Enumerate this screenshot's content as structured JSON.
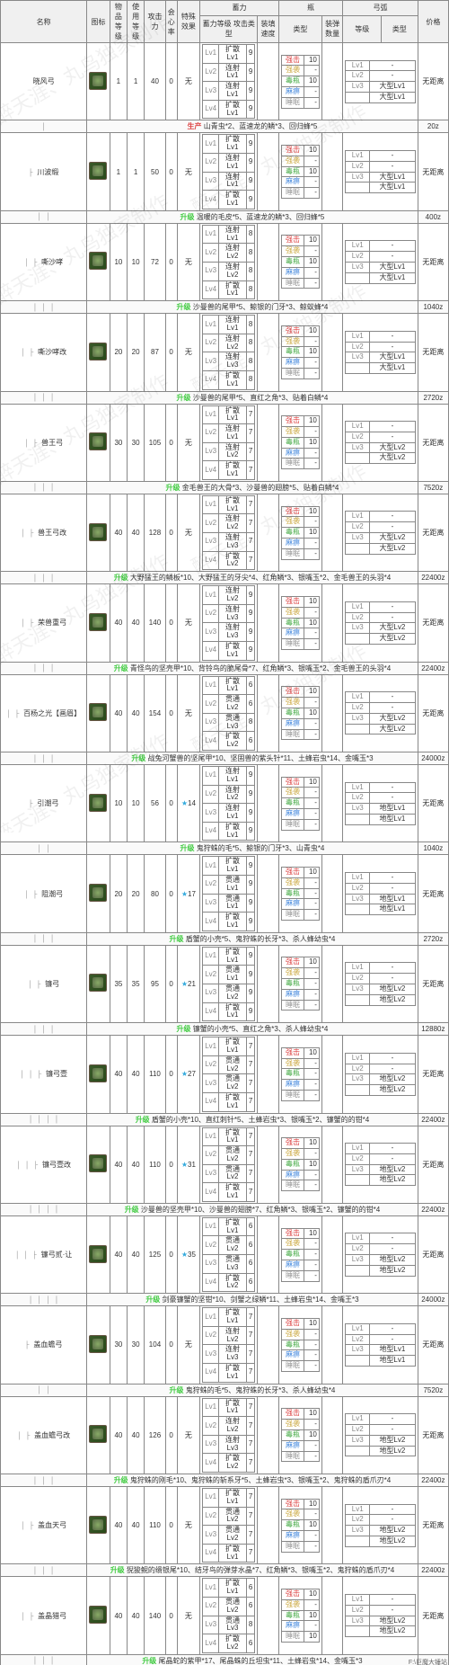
{
  "watermark_text": "醉天涯、丸鸟独家制作",
  "footer_text": "F:\\巨魔大锤站",
  "headers": {
    "name": "名称",
    "icon": "图标",
    "rare": "物品\n等级",
    "use": "使用\n等级",
    "atk": "攻击\n力",
    "aff": "会心\n率",
    "sp": "特殊\n效果",
    "power_top": "蓄力",
    "bottle_top": "瓶",
    "arc_top": "弓弧",
    "power_lv": "蓄力等级",
    "power_type": "攻击类型",
    "load": "装填速度",
    "bot_type": "类型",
    "bot_num": "装弹数量",
    "arc_lv": "等级",
    "coat": "类型",
    "price": "价格"
  },
  "rows": [
    {
      "depth": 0,
      "name": "晓风弓",
      "rare": 1,
      "use": 1,
      "atk": 40,
      "aff": 0,
      "sp": "无",
      "pow": [
        [
          "Lv1",
          "扩散Lv1",
          "9"
        ],
        [
          "Lv2",
          "连射Lv1",
          "9"
        ],
        [
          "Lv3",
          "连射Lv1",
          "9"
        ],
        [
          "Lv4",
          "扩散Lv1",
          "9"
        ]
      ],
      "bot": [
        [
          "强击",
          "10"
        ],
        [
          "强袭",
          "-"
        ],
        [
          "毒瓶",
          "10"
        ],
        [
          "麻痹",
          "-"
        ],
        [
          "睡眠",
          "-"
        ]
      ],
      "arc": [
        [
          "Lv1",
          "-"
        ],
        [
          "Lv2",
          "-"
        ],
        [
          "Lv3",
          "大型Lv1"
        ],
        [
          "",
          "大型Lv1"
        ]
      ],
      "price": "无距离",
      "mat_tag": "生产",
      "mat": "山青虫*2、蓝速龙的鳞*3、回归蜂*5",
      "mat_price": "20z"
    },
    {
      "depth": 1,
      "name": "川波缎",
      "rare": 1,
      "use": 1,
      "atk": 50,
      "aff": 0,
      "sp": "无",
      "pow": [
        [
          "Lv1",
          "扩散Lv1",
          "9"
        ],
        [
          "Lv2",
          "连射Lv1",
          "9"
        ],
        [
          "Lv3",
          "连射Lv1",
          "9"
        ],
        [
          "Lv4",
          "扩散Lv1",
          "9"
        ]
      ],
      "bot": [
        [
          "强击",
          "10"
        ],
        [
          "强袭",
          "-"
        ],
        [
          "毒瓶",
          "10"
        ],
        [
          "麻痹",
          "-"
        ],
        [
          "睡眠",
          "-"
        ]
      ],
      "arc": [
        [
          "Lv1",
          "-"
        ],
        [
          "Lv2",
          "-"
        ],
        [
          "Lv3",
          "大型Lv1"
        ],
        [
          "",
          "大型Lv1"
        ]
      ],
      "price": "无距离",
      "mat_tag": "升级",
      "mat": "温暖的毛皮*5、蓝速龙的鳞*3、回归蜂*5",
      "mat_price": "400z"
    },
    {
      "depth": 2,
      "name": "嘶沙哮",
      "rare": 10,
      "use": 10,
      "atk": 72,
      "aff": 0,
      "sp": "无",
      "pow": [
        [
          "Lv1",
          "连射Lv1",
          "8"
        ],
        [
          "Lv2",
          "连射Lv2",
          "8"
        ],
        [
          "Lv3",
          "连射Lv2",
          "8"
        ],
        [
          "Lv4",
          "扩散Lv1",
          "8"
        ]
      ],
      "bot": [
        [
          "强击",
          "10"
        ],
        [
          "强袭",
          "-"
        ],
        [
          "毒瓶",
          "10"
        ],
        [
          "麻痹",
          "-"
        ],
        [
          "睡眠",
          "-"
        ]
      ],
      "arc": [
        [
          "Lv1",
          "-"
        ],
        [
          "Lv2",
          "-"
        ],
        [
          "Lv3",
          "大型Lv1"
        ],
        [
          "",
          "大型Lv1"
        ]
      ],
      "price": "无距离",
      "mat_tag": "升级",
      "mat": "沙曼兽的尾甲*5、鲸银的门牙*3、鲸蚁蜂*4",
      "mat_price": "1040z"
    },
    {
      "depth": 2,
      "name": "嘶沙哮改",
      "rare": 20,
      "use": 20,
      "atk": 87,
      "aff": 0,
      "sp": "无",
      "pow": [
        [
          "Lv1",
          "连射Lv1",
          "8"
        ],
        [
          "Lv2",
          "连射Lv2",
          "8"
        ],
        [
          "Lv3",
          "连射Lv3",
          "8"
        ],
        [
          "Lv4",
          "扩散Lv1",
          "8"
        ]
      ],
      "bot": [
        [
          "强击",
          "10"
        ],
        [
          "强袭",
          "-"
        ],
        [
          "毒瓶",
          "10"
        ],
        [
          "麻痹",
          "-"
        ],
        [
          "睡眠",
          "-"
        ]
      ],
      "arc": [
        [
          "Lv1",
          "-"
        ],
        [
          "Lv2",
          "-"
        ],
        [
          "Lv3",
          "大型Lv1"
        ],
        [
          "",
          "大型Lv1"
        ]
      ],
      "price": "无距离",
      "mat_tag": "升级",
      "mat": "沙曼兽的尾甲*5、直红之角*3、贴着白鳞*4",
      "mat_price": "2720z"
    },
    {
      "depth": 2,
      "name": "兽王弓",
      "rare": 30,
      "use": 30,
      "atk": 105,
      "aff": 0,
      "sp": "无",
      "pow": [
        [
          "Lv1",
          "扩散Lv1",
          "7"
        ],
        [
          "Lv2",
          "连射Lv1",
          "7"
        ],
        [
          "Lv3",
          "连射Lv2",
          "7"
        ],
        [
          "Lv4",
          "扩散Lv1",
          "7"
        ]
      ],
      "bot": [
        [
          "强击",
          "10"
        ],
        [
          "强袭",
          "-"
        ],
        [
          "毒瓶",
          "10"
        ],
        [
          "麻痹",
          "-"
        ],
        [
          "睡眠",
          "-"
        ]
      ],
      "arc": [
        [
          "Lv1",
          "-"
        ],
        [
          "Lv2",
          "-"
        ],
        [
          "Lv3",
          "大型Lv2"
        ],
        [
          "",
          "大型Lv2"
        ]
      ],
      "price": "无距离",
      "mat_tag": "升级",
      "mat": "金毛兽王的大骨*3、沙曼兽的翅膀*5、贴着白鳞*4",
      "mat_price": "7520z"
    },
    {
      "depth": 2,
      "name": "兽王弓改",
      "rare": 40,
      "use": 40,
      "atk": 128,
      "aff": 0,
      "sp": "无",
      "pow": [
        [
          "Lv1",
          "扩散Lv1",
          "7"
        ],
        [
          "Lv2",
          "连射Lv2",
          "7"
        ],
        [
          "Lv3",
          "连射Lv3",
          "7"
        ],
        [
          "Lv4",
          "扩散Lv2",
          "7"
        ]
      ],
      "bot": [
        [
          "强击",
          "10"
        ],
        [
          "强袭",
          "-"
        ],
        [
          "毒瓶",
          "10"
        ],
        [
          "麻痹",
          "-"
        ],
        [
          "睡眠",
          "-"
        ]
      ],
      "arc": [
        [
          "Lv1",
          "-"
        ],
        [
          "Lv2",
          "-"
        ],
        [
          "Lv3",
          "大型Lv2"
        ],
        [
          "",
          "大型Lv2"
        ]
      ],
      "price": "无距离",
      "mat_tag": "升级",
      "mat": "大野猛王的鳞板*10、大野猛王的牙尖*4、红角鳞*3、银嘴玉*2、金毛兽王的头羽*4",
      "mat_price": "22400z"
    },
    {
      "depth": 2,
      "name": "荣兽重弓",
      "rare": 40,
      "use": 40,
      "atk": 140,
      "aff": 0,
      "sp": "无",
      "pow": [
        [
          "Lv1",
          "连射Lv2",
          "9"
        ],
        [
          "Lv2",
          "连射Lv3",
          "9"
        ],
        [
          "Lv3",
          "连射Lv3",
          "9"
        ],
        [
          "Lv4",
          "扩散Lv1",
          "9"
        ]
      ],
      "bot": [
        [
          "强击",
          "10"
        ],
        [
          "强袭",
          "-"
        ],
        [
          "毒瓶",
          "10"
        ],
        [
          "麻痹",
          "-"
        ],
        [
          "睡眠",
          "-"
        ]
      ],
      "arc": [
        [
          "Lv1",
          "-"
        ],
        [
          "Lv2",
          "-"
        ],
        [
          "Lv3",
          "大型Lv2"
        ],
        [
          "",
          "大型Lv2"
        ]
      ],
      "price": "无距离",
      "mat_tag": "升级",
      "mat": "青怪鸟的坚壳甲*10、背铃鸟的脆尾骨*7、红角鳞*3、银嘴玉*2、金毛兽王的头羽*4",
      "mat_price": "22400z"
    },
    {
      "depth": 2,
      "name": "百杨之光【画眉】",
      "rare": 40,
      "use": 40,
      "atk": 154,
      "aff": 0,
      "sp": "无",
      "pow": [
        [
          "Lv1",
          "扩散Lv1",
          "6"
        ],
        [
          "Lv2",
          "贯通Lv2",
          "6"
        ],
        [
          "Lv3",
          "贯通Lv3",
          "8"
        ],
        [
          "Lv4",
          "扩散Lv2",
          "6"
        ]
      ],
      "bot": [
        [
          "强击",
          "10"
        ],
        [
          "强袭",
          "-"
        ],
        [
          "毒瓶",
          "10"
        ],
        [
          "麻痹",
          "-"
        ],
        [
          "睡眠",
          "-"
        ]
      ],
      "arc": [
        [
          "Lv1",
          "-"
        ],
        [
          "Lv2",
          "-"
        ],
        [
          "Lv3",
          "大型Lv2"
        ],
        [
          "",
          "大型Lv2"
        ]
      ],
      "price": "无距离",
      "mat_tag": "升级",
      "mat": "战兔河蟹兽的坚尾甲*10、坚固兽的紫头针*11、土蜂岩虫*14、金嘴玉*3",
      "mat_price": "24000z"
    },
    {
      "depth": 1,
      "name": "引潮弓",
      "rare": 10,
      "use": 10,
      "atk": 56,
      "aff": 0,
      "sp": "★14",
      "pow": [
        [
          "Lv1",
          "连射Lv1",
          "9"
        ],
        [
          "Lv2",
          "连射Lv2",
          "9"
        ],
        [
          "Lv3",
          "连射Lv1",
          "9"
        ],
        [
          "Lv4",
          "扩散Lv1",
          "9"
        ]
      ],
      "bot": [
        [
          "强击",
          "10"
        ],
        [
          "强袭",
          "-"
        ],
        [
          "毒瓶",
          "-"
        ],
        [
          "麻痹",
          "-"
        ],
        [
          "睡眠",
          "-"
        ]
      ],
      "arc": [
        [
          "Lv1",
          "-"
        ],
        [
          "Lv2",
          "-"
        ],
        [
          "Lv3",
          "地型Lv1"
        ],
        [
          "",
          "地型Lv1"
        ]
      ],
      "price": "无距离",
      "mat_tag": "升级",
      "mat": "鬼狩蛛的毛*5、鲸银的门牙*3、山青虫*4",
      "mat_price": "1040z"
    },
    {
      "depth": 2,
      "name": "阻潮弓",
      "rare": 20,
      "use": 20,
      "atk": 80,
      "aff": 0,
      "sp": "★17",
      "pow": [
        [
          "Lv1",
          "扩散Lv1",
          "9"
        ],
        [
          "Lv2",
          "贯通Lv1",
          "9"
        ],
        [
          "Lv3",
          "贯通Lv1",
          "9"
        ],
        [
          "Lv4",
          "扩散Lv1",
          "9"
        ]
      ],
      "bot": [
        [
          "强击",
          "10"
        ],
        [
          "强袭",
          "-"
        ],
        [
          "毒瓶",
          "-"
        ],
        [
          "麻痹",
          "-"
        ],
        [
          "睡眠",
          "-"
        ]
      ],
      "arc": [
        [
          "Lv1",
          "-"
        ],
        [
          "Lv2",
          "-"
        ],
        [
          "Lv3",
          "地型Lv1"
        ],
        [
          "",
          "地型Lv1"
        ]
      ],
      "price": "无距离",
      "mat_tag": "升级",
      "mat": "盾蟹的小壳*5、鬼狩蛛的长牙*3、杀人蜂幼虫*4",
      "mat_price": "2720z"
    },
    {
      "depth": 2,
      "name": "镰弓",
      "rare": 35,
      "use": 35,
      "atk": 95,
      "aff": 0,
      "sp": "★21",
      "pow": [
        [
          "Lv1",
          "扩散Lv1",
          "9"
        ],
        [
          "Lv2",
          "贯通Lv1",
          "9"
        ],
        [
          "Lv3",
          "贯通Lv2",
          "9"
        ],
        [
          "Lv4",
          "扩散Lv1",
          "9"
        ]
      ],
      "bot": [
        [
          "强击",
          "10"
        ],
        [
          "强袭",
          "-"
        ],
        [
          "毒瓶",
          "-"
        ],
        [
          "麻痹",
          "-"
        ],
        [
          "睡眠",
          "-"
        ]
      ],
      "arc": [
        [
          "Lv1",
          "-"
        ],
        [
          "Lv2",
          "-"
        ],
        [
          "Lv3",
          "地型Lv2"
        ],
        [
          "",
          "地型Lv2"
        ]
      ],
      "price": "无距离",
      "mat_tag": "升级",
      "mat": "镰蟹的小壳*5、直红之角*3、杀人蜂幼虫*4",
      "mat_price": "12880z"
    },
    {
      "depth": 3,
      "name": "镰弓壹",
      "rare": 40,
      "use": 40,
      "atk": 110,
      "aff": 0,
      "sp": "★27",
      "pow": [
        [
          "Lv1",
          "扩散Lv1",
          "7"
        ],
        [
          "Lv2",
          "贯通Lv2",
          "7"
        ],
        [
          "Lv3",
          "贯通Lv2",
          "7"
        ],
        [
          "Lv4",
          "扩散Lv1",
          "7"
        ]
      ],
      "bot": [
        [
          "强击",
          "10"
        ],
        [
          "强袭",
          "-"
        ],
        [
          "毒瓶",
          "-"
        ],
        [
          "麻痹",
          "-"
        ],
        [
          "睡眠",
          "-"
        ]
      ],
      "arc": [
        [
          "Lv1",
          "-"
        ],
        [
          "Lv2",
          "-"
        ],
        [
          "Lv3",
          "地型Lv2"
        ],
        [
          "",
          "地型Lv2"
        ]
      ],
      "price": "无距离",
      "mat_tag": "升级",
      "mat": "盾蟹的小壳*10、直红刺针*5、土蜂岩虫*3、银嘴玉*2、镰蟹的的钳*4",
      "mat_price": "22400z"
    },
    {
      "depth": 3,
      "name": "镰弓壹改",
      "rare": 40,
      "use": 40,
      "atk": 110,
      "aff": 0,
      "sp": "★31",
      "pow": [
        [
          "Lv1",
          "扩散Lv1",
          "7"
        ],
        [
          "Lv2",
          "贯通Lv2",
          "7"
        ],
        [
          "Lv3",
          "贯通Lv2",
          "7"
        ],
        [
          "Lv4",
          "扩散Lv1",
          "7"
        ]
      ],
      "bot": [
        [
          "强击",
          "10"
        ],
        [
          "强袭",
          "-"
        ],
        [
          "毒瓶",
          "10"
        ],
        [
          "麻痹",
          "-"
        ],
        [
          "睡眠",
          "-"
        ]
      ],
      "arc": [
        [
          "Lv1",
          "-"
        ],
        [
          "Lv2",
          "-"
        ],
        [
          "Lv3",
          "地型Lv2"
        ],
        [
          "",
          "地型Lv2"
        ]
      ],
      "price": "无距离",
      "mat_tag": "升级",
      "mat": "沙曼兽的坚壳甲*10、沙曼兽的翅膀*7、红角鳞*3、银嘴玉*2、镰蟹的的钳*4",
      "mat_price": "22400z"
    },
    {
      "depth": 3,
      "name": "镰弓贰·让",
      "rare": 40,
      "use": 40,
      "atk": 125,
      "aff": 0,
      "sp": "★35",
      "pow": [
        [
          "Lv1",
          "扩散Lv1",
          "6"
        ],
        [
          "Lv2",
          "贯通Lv2",
          "6"
        ],
        [
          "Lv3",
          "贯通Lv3",
          "6"
        ],
        [
          "Lv4",
          "扩散Lv2",
          "6"
        ]
      ],
      "bot": [
        [
          "强击",
          "10"
        ],
        [
          "强袭",
          "-"
        ],
        [
          "毒瓶",
          "-"
        ],
        [
          "麻痹",
          "-"
        ],
        [
          "睡眠",
          "-"
        ]
      ],
      "arc": [
        [
          "Lv1",
          "-"
        ],
        [
          "Lv2",
          "-"
        ],
        [
          "Lv3",
          "地型Lv2"
        ],
        [
          "",
          "地型Lv2"
        ]
      ],
      "price": "无距离",
      "mat_tag": "升级",
      "mat": "剑豪镰蟹的坚钳*10、剑蟹之绿鳞*11、土蜂岩虫*14、金嘴王*3",
      "mat_price": "24000z"
    },
    {
      "depth": 1,
      "name": "盖血蟾弓",
      "rare": 30,
      "use": 30,
      "atk": 104,
      "aff": 0,
      "sp": "无",
      "pow": [
        [
          "Lv1",
          "扩散Lv1",
          "7"
        ],
        [
          "Lv2",
          "连射Lv2",
          "7"
        ],
        [
          "Lv3",
          "连射Lv3",
          "7"
        ],
        [
          "Lv4",
          "扩散Lv1",
          "7"
        ]
      ],
      "bot": [
        [
          "强击",
          "10"
        ],
        [
          "强袭",
          "-"
        ],
        [
          "毒瓶",
          "-"
        ],
        [
          "麻痹",
          "-"
        ],
        [
          "睡眠",
          "-"
        ]
      ],
      "arc": [
        [
          "Lv1",
          "-"
        ],
        [
          "Lv2",
          "-"
        ],
        [
          "Lv3",
          "地型Lv1"
        ],
        [
          "",
          "地型Lv1"
        ]
      ],
      "price": "无距离",
      "mat_tag": "升级",
      "mat": "鬼狩蛛的毛*5、鬼狩蛛的长牙*3、杀人蜂幼虫*4",
      "mat_price": "7520z"
    },
    {
      "depth": 2,
      "name": "盖血蟾弓改",
      "rare": 40,
      "use": 40,
      "atk": 126,
      "aff": 0,
      "sp": "无",
      "pow": [
        [
          "Lv1",
          "扩散Lv1",
          "7"
        ],
        [
          "Lv2",
          "连射Lv2",
          "7"
        ],
        [
          "Lv3",
          "连射Lv3",
          "7"
        ],
        [
          "Lv4",
          "扩散Lv2",
          "7"
        ]
      ],
      "bot": [
        [
          "强击",
          "10"
        ],
        [
          "强袭",
          "-"
        ],
        [
          "毒瓶",
          "10"
        ],
        [
          "麻痹",
          "-"
        ],
        [
          "睡眠",
          "-"
        ]
      ],
      "arc": [
        [
          "Lv1",
          "-"
        ],
        [
          "Lv2",
          "-"
        ],
        [
          "Lv3",
          "地型Lv2"
        ],
        [
          "",
          "地型Lv2"
        ]
      ],
      "price": "无距离",
      "mat_tag": "升级",
      "mat": "鬼狩蛛的刚毛*10、鬼狩蛛的斩系牙*5、土蜂岩虫*3、银嘴玉*2、鬼狩蛛的盾爪刃*4",
      "mat_price": "22400z"
    },
    {
      "depth": 2,
      "name": "盖血天弓",
      "rare": 40,
      "use": 40,
      "atk": 110,
      "aff": 0,
      "sp": "无",
      "pow": [
        [
          "Lv1",
          "扩散Lv1",
          "7"
        ],
        [
          "Lv2",
          "贯通Lv2",
          "7"
        ],
        [
          "Lv3",
          "贯通Lv2",
          "7"
        ],
        [
          "Lv4",
          "扩散Lv1",
          "7"
        ]
      ],
      "bot": [
        [
          "强击",
          "10"
        ],
        [
          "强袭",
          "-"
        ],
        [
          "毒瓶",
          "10"
        ],
        [
          "麻痹",
          "-"
        ],
        [
          "睡眠",
          "-"
        ]
      ],
      "arc": [
        [
          "Lv1",
          "-"
        ],
        [
          "Lv2",
          "-"
        ],
        [
          "Lv3",
          "地型Lv2"
        ],
        [
          "",
          "地型Lv2"
        ]
      ],
      "price": "无距离",
      "mat_tag": "升级",
      "mat": "猊狻鲵的缋银尾*10、结牙鸟的弹芽水晶*7、红角鳞*3、银嘴玉*2、鬼狩蛛的盾爪刃*4",
      "mat_price": "22400z"
    },
    {
      "depth": 2,
      "name": "盖晶猎弓",
      "rare": 40,
      "use": 40,
      "atk": 140,
      "aff": 0,
      "sp": "无",
      "pow": [
        [
          "Lv1",
          "扩散Lv1",
          "6"
        ],
        [
          "Lv2",
          "贯通Lv2",
          "6"
        ],
        [
          "Lv3",
          "贯通Lv3",
          "8"
        ],
        [
          "Lv4",
          "扩散Lv2",
          "6"
        ]
      ],
      "bot": [
        [
          "强击",
          "10"
        ],
        [
          "强袭",
          "-"
        ],
        [
          "毒瓶",
          "10"
        ],
        [
          "麻痹",
          "-"
        ],
        [
          "睡眠",
          "10"
        ]
      ],
      "arc": [
        [
          "Lv1",
          "-"
        ],
        [
          "Lv2",
          "-"
        ],
        [
          "Lv3",
          "地型Lv2"
        ],
        [
          "",
          "地型Lv2"
        ]
      ],
      "price": "无距离",
      "mat_tag": "升级",
      "mat": "尾晶蛇的紫甲*17、尾晶蛛的丘坦虫*11、土蜂岩虫*14、金嘴玉*3",
      "mat_price": ""
    }
  ]
}
